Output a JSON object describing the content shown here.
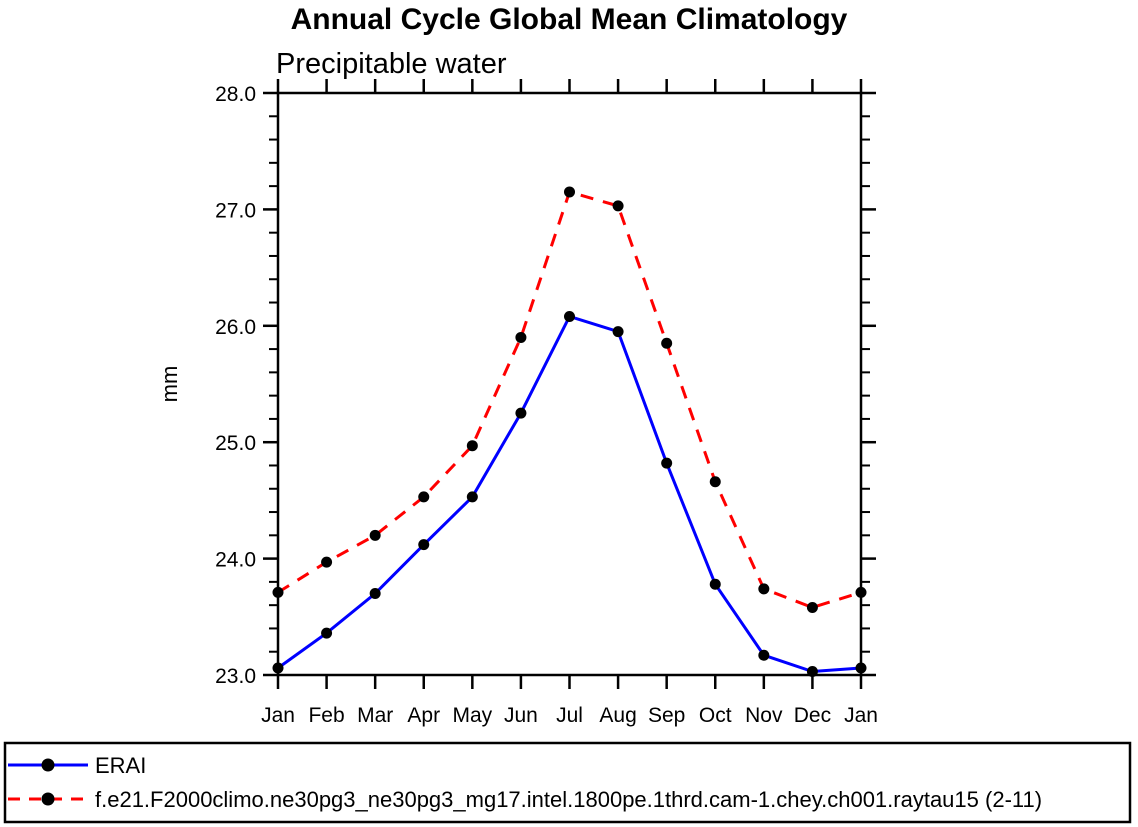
{
  "chart_data": {
    "type": "line",
    "title": "Annual Cycle Global Mean Climatology",
    "subtitle": "Precipitable water",
    "xlabel": "",
    "ylabel": "mm",
    "categories": [
      "Jan",
      "Feb",
      "Mar",
      "Apr",
      "May",
      "Jun",
      "Jul",
      "Aug",
      "Sep",
      "Oct",
      "Nov",
      "Dec",
      "Jan"
    ],
    "ylim": [
      23.0,
      28.0
    ],
    "ytick_major_step": 1.0,
    "ytick_minor_step": 0.2,
    "ytick_labels": [
      "23.0",
      "24.0",
      "25.0",
      "26.0",
      "27.0",
      "28.0"
    ],
    "grid": false,
    "legend_position": "bottom-box",
    "frame_color": "#000000",
    "series": [
      {
        "name": "ERAI",
        "color": "#0000ff",
        "line_style": "solid",
        "marker": "filled-circle",
        "marker_color": "#000000",
        "values": [
          23.06,
          23.36,
          23.7,
          24.12,
          24.53,
          25.25,
          26.08,
          25.95,
          24.82,
          23.78,
          23.17,
          23.03,
          23.06
        ]
      },
      {
        "name": "f.e21.F2000climo.ne30pg3_ne30pg3_mg17.intel.1800pe.1thrd.cam-1.chey.ch001.raytau15 (2-11)",
        "color": "#ff0000",
        "line_style": "dashed",
        "marker": "filled-circle",
        "marker_color": "#000000",
        "values": [
          23.71,
          23.97,
          24.2,
          24.53,
          24.97,
          25.9,
          27.15,
          27.03,
          25.85,
          24.66,
          23.74,
          23.58,
          23.71
        ]
      }
    ]
  }
}
